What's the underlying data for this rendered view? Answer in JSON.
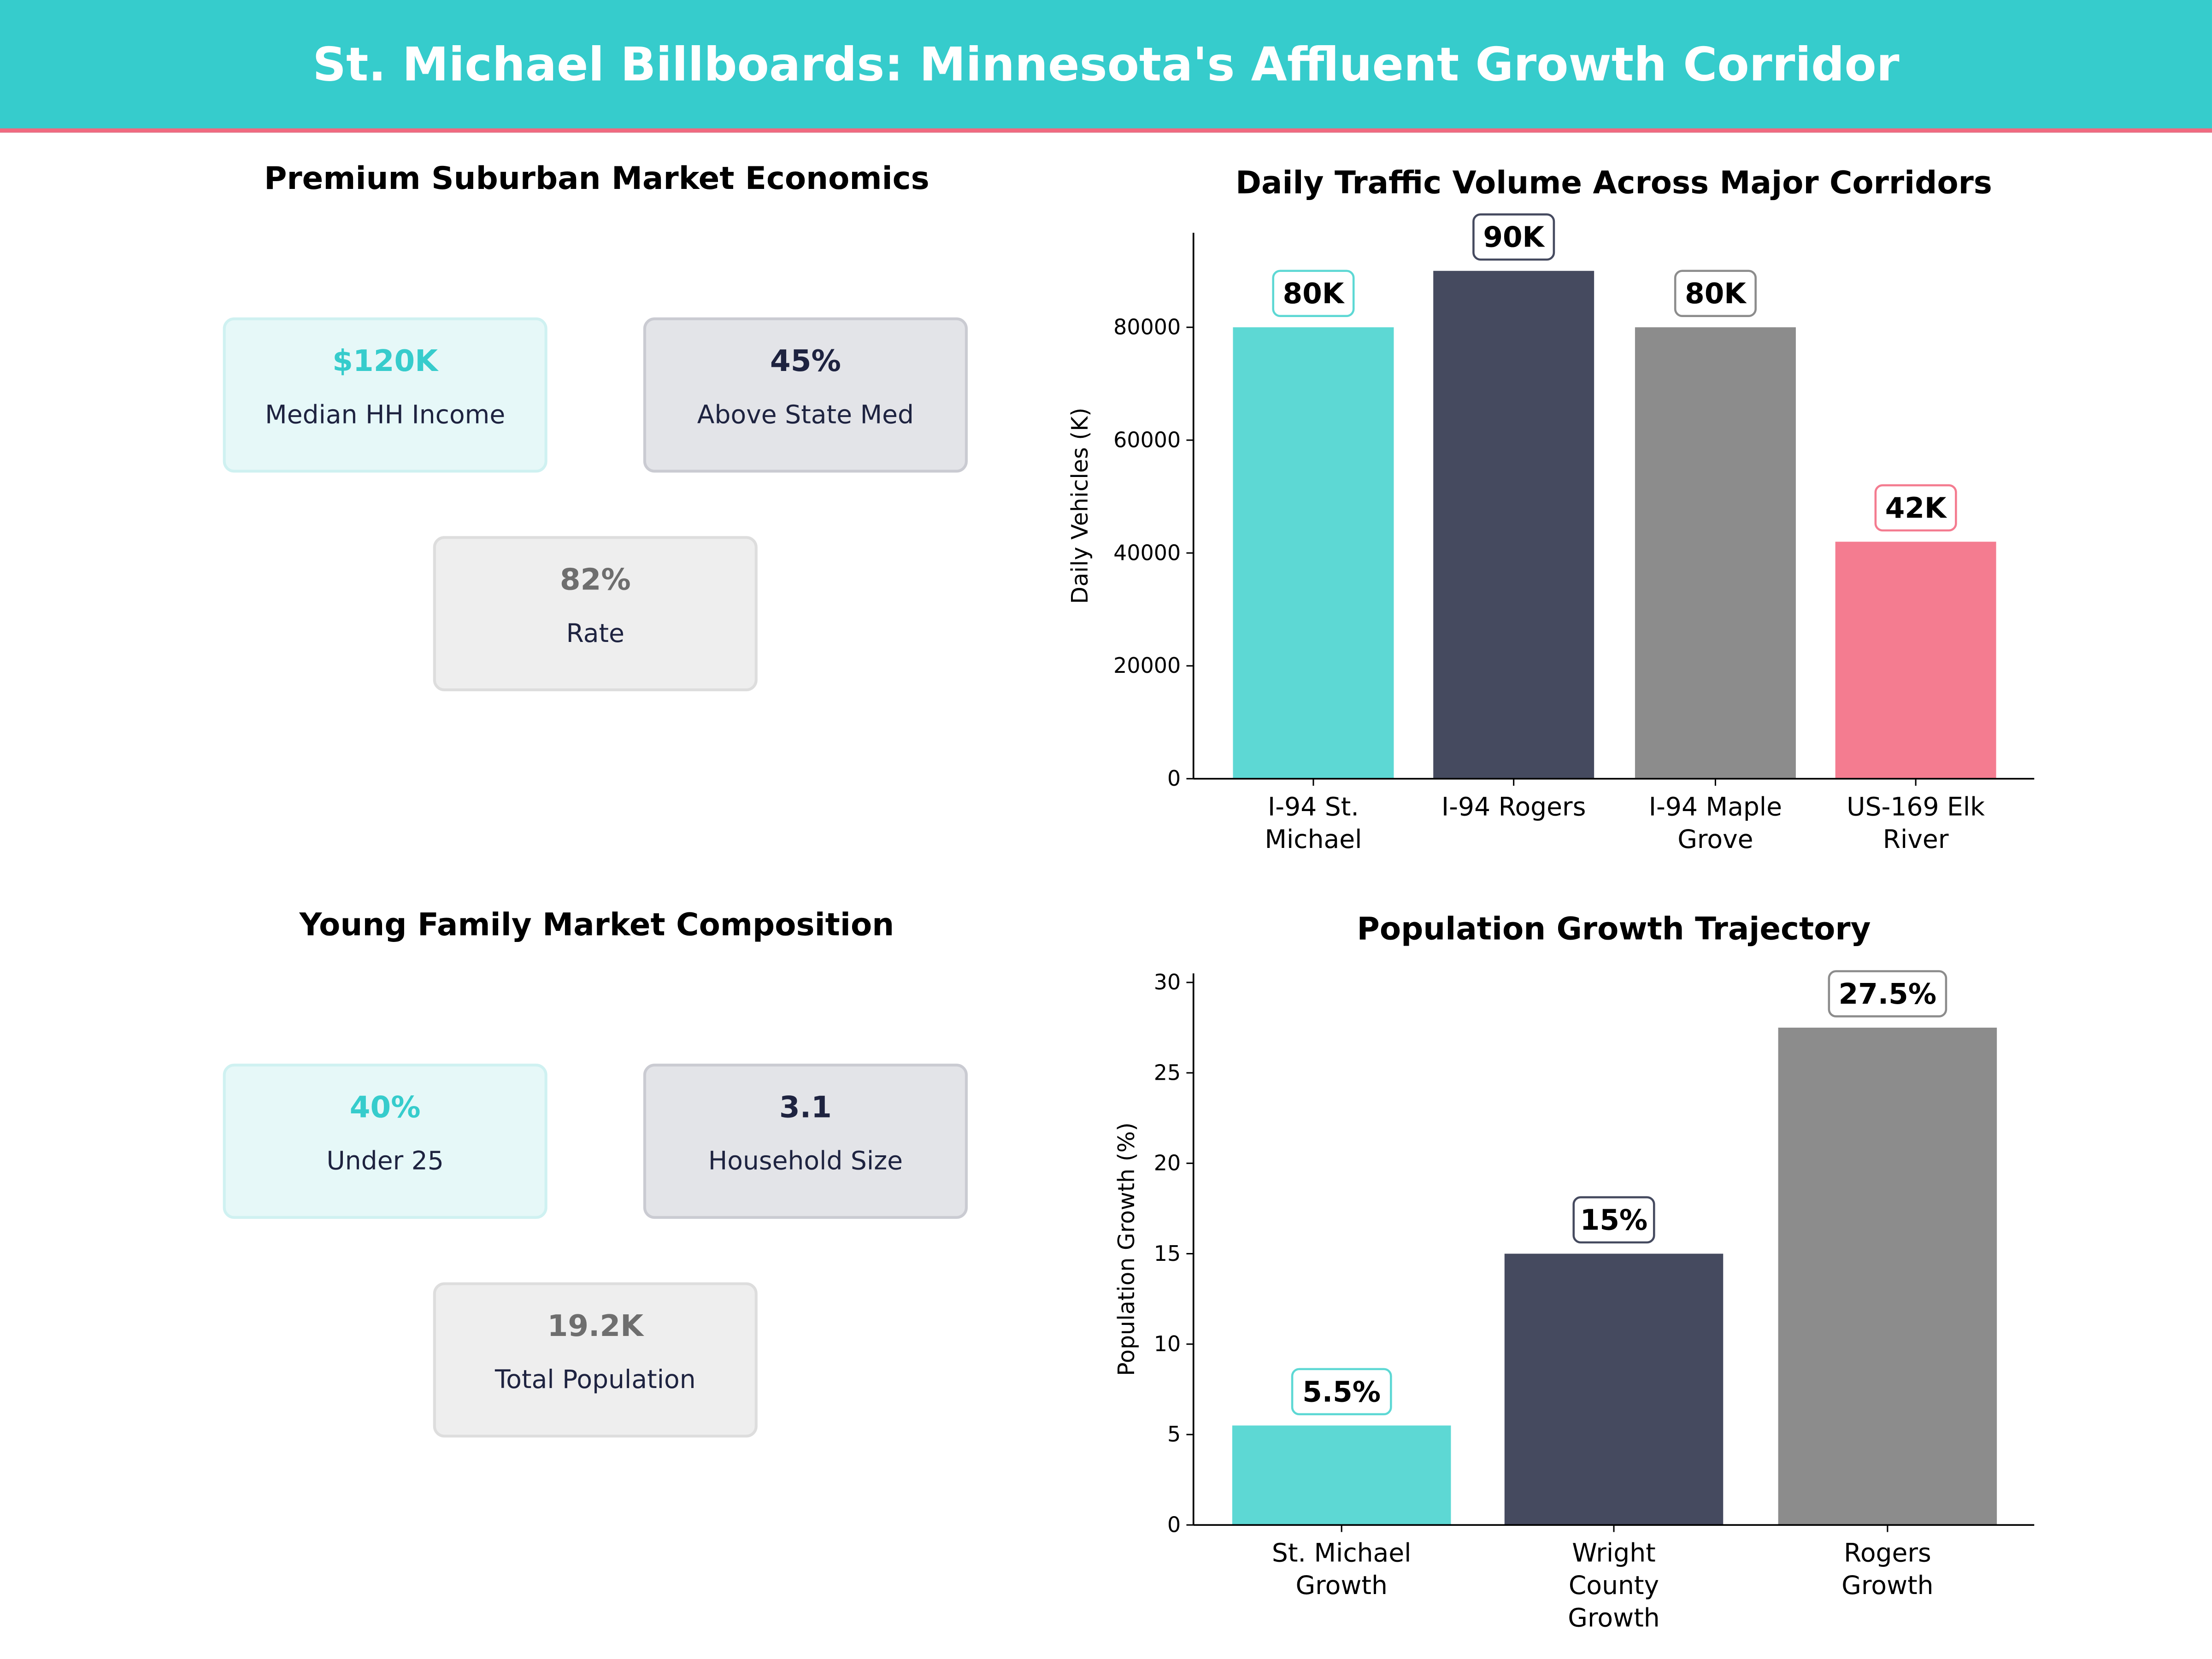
{
  "header": {
    "title": "St. Michael Billboards: Minnesota's Affluent Growth Corridor"
  },
  "colors": {
    "header_bg": "#36CCCC",
    "accent_line": "#F06A80",
    "teal": "#5DD8D4",
    "navy": "#454A5F",
    "gray": "#8C8C8C",
    "pink": "#F47C90"
  },
  "economics": {
    "title": "Premium Suburban Market Economics",
    "cards": [
      {
        "value": "$120K",
        "label": "Median HH Income"
      },
      {
        "value": "45%",
        "label": "Above State Med"
      },
      {
        "value": "82%",
        "label": "Rate"
      }
    ]
  },
  "family": {
    "title": "Young Family Market Composition",
    "cards": [
      {
        "value": "40%",
        "label": "Under 25"
      },
      {
        "value": "3.1",
        "label": "Household Size"
      },
      {
        "value": "19.2K",
        "label": "Total Population"
      }
    ]
  },
  "chart_data": [
    {
      "type": "bar",
      "title": "Daily Traffic Volume Across Major Corridors",
      "xlabel": "",
      "ylabel": "Daily Vehicles (K)",
      "categories": [
        [
          "I-94 St.",
          "Michael"
        ],
        [
          "I-94 Rogers"
        ],
        [
          "I-94 Maple",
          "Grove"
        ],
        [
          "US-169 Elk",
          "River"
        ]
      ],
      "values": [
        80000,
        90000,
        80000,
        42000
      ],
      "data_labels": [
        "80K",
        "90K",
        "80K",
        "42K"
      ],
      "colors": [
        "#5DD8D4",
        "#454A5F",
        "#8C8C8C",
        "#F47C90"
      ],
      "yticks": [
        0,
        20000,
        40000,
        60000,
        80000
      ],
      "ylim": [
        0,
        96750
      ],
      "grid": false
    },
    {
      "type": "bar",
      "title": "Population Growth Trajectory",
      "xlabel": "",
      "ylabel": "Population Growth (%)",
      "categories": [
        [
          "St. Michael",
          "Growth"
        ],
        [
          "Wright",
          "County",
          "Growth"
        ],
        [
          "Rogers",
          "Growth"
        ]
      ],
      "values": [
        5.5,
        15,
        27.5
      ],
      "data_labels": [
        "5.5%",
        "15%",
        "27.5%"
      ],
      "colors": [
        "#5DD8D4",
        "#454A5F",
        "#8C8C8C"
      ],
      "yticks": [
        0,
        5,
        10,
        15,
        20,
        25,
        30
      ],
      "ylim": [
        0,
        30.5
      ],
      "grid": false
    }
  ]
}
